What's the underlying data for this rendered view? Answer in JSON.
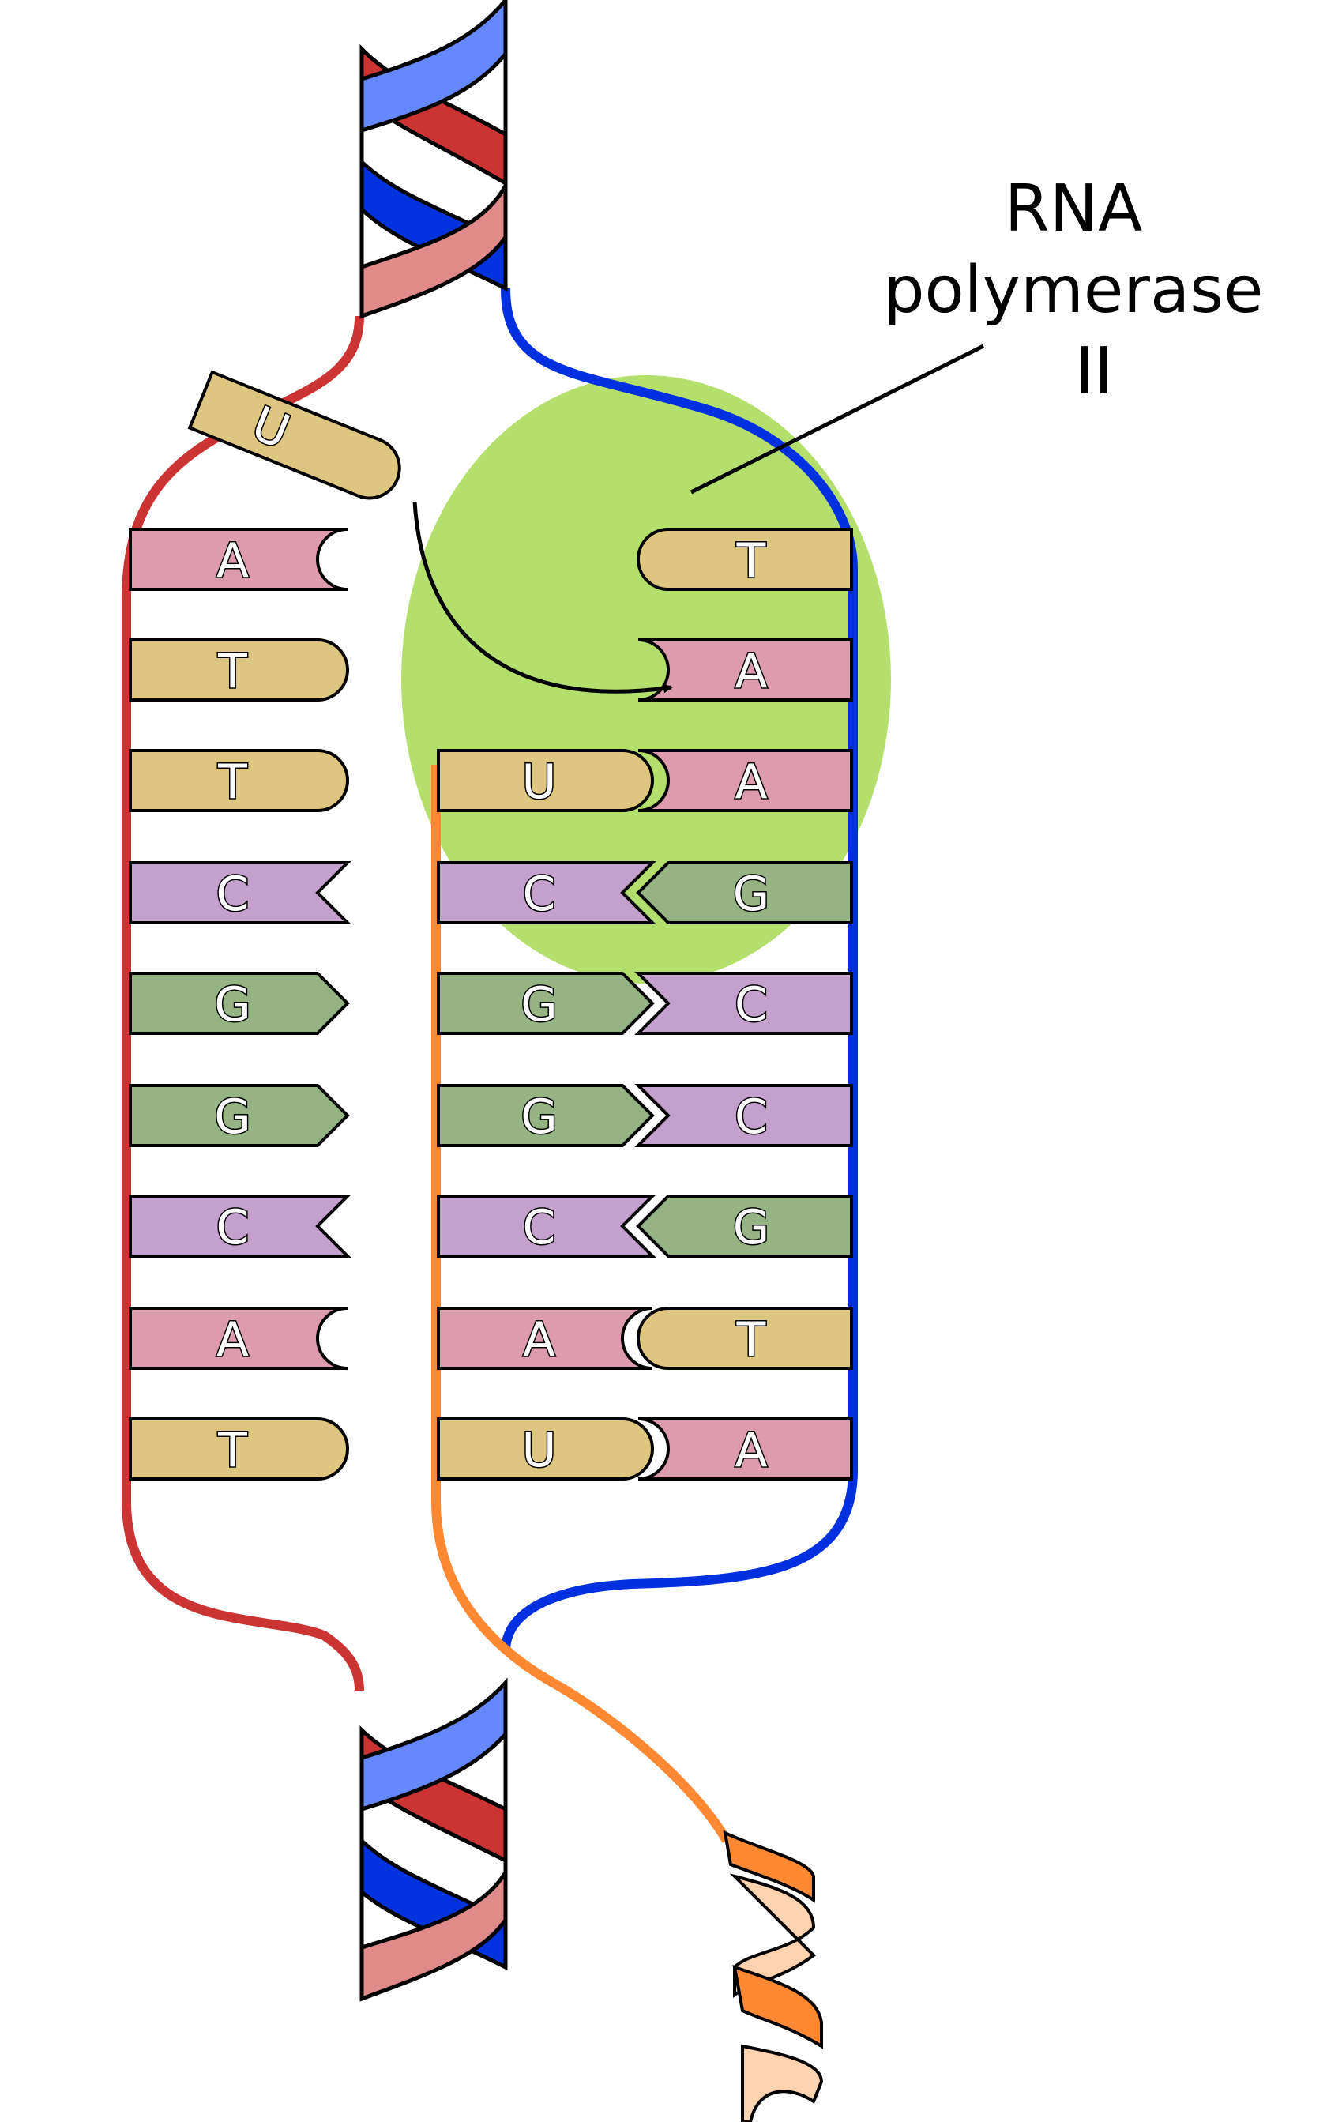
{
  "label": {
    "lines": [
      "RNA",
      "polymerase",
      "II"
    ]
  },
  "colors": {
    "A": "#dd9cad",
    "T": "#dcc680",
    "U": "#dcc680",
    "C": "#c4a0cc",
    "G": "#95b383",
    "template_strand": "#0030e0",
    "coding_strand": "#cc3333",
    "rna_strand": "#ff8833",
    "polymerase": "#b5df6c",
    "helix_blue": "#6688ff",
    "helix_dark_blue": "#0033dd",
    "helix_red": "#cc3333",
    "helix_pink": "#e08a8a",
    "rna_helix_light": "#ffd2b0"
  },
  "coding_strand_bases": [
    "A",
    "T",
    "T",
    "C",
    "G",
    "G",
    "C",
    "A",
    "T"
  ],
  "rna_bases": [
    "U",
    "C",
    "G",
    "G",
    "C",
    "A",
    "U"
  ],
  "template_strand_bases": [
    "T",
    "A",
    "A",
    "G",
    "C",
    "C",
    "G",
    "T",
    "A"
  ],
  "incoming_nucleotide": "U"
}
